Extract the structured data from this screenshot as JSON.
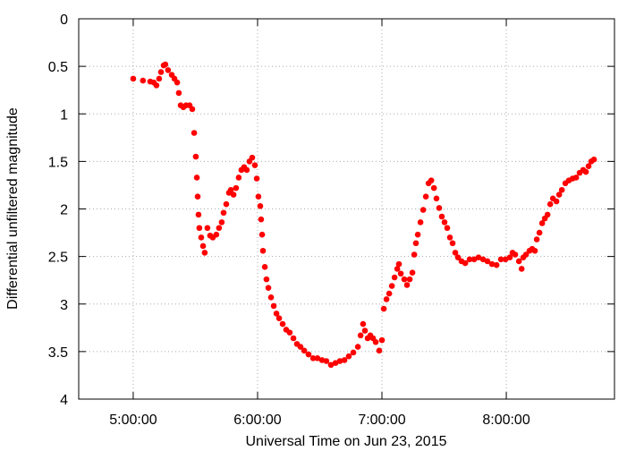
{
  "chart_data": {
    "type": "scatter",
    "x_label": "Universal Time on Jun 23, 2015",
    "y_label": "Differential unfiltered magnitude",
    "xlim": [
      273.7,
      532.2
    ],
    "ylim": [
      4,
      0
    ],
    "xticks": [
      {
        "value": 300,
        "label": "5:00:00"
      },
      {
        "value": 360,
        "label": "6:00:00"
      },
      {
        "value": 420,
        "label": "7:00:00"
      },
      {
        "value": 480,
        "label": "8:00:00"
      }
    ],
    "yticks": [
      0,
      0.5,
      1,
      1.5,
      2,
      2.5,
      3,
      3.5,
      4
    ],
    "grid": true,
    "series": [
      {
        "color": "#ff0000",
        "x": [
          300,
          304.7,
          308.2,
          309.9,
          311.2,
          312.5,
          313.4,
          314.7,
          315.5,
          316.8,
          318.6,
          319.9,
          321.2,
          322.0,
          322.9,
          324.2,
          325.5,
          327.2,
          328.5,
          329.4,
          330.2,
          330.7,
          331.1,
          331.5,
          331.9,
          332.8,
          333.7,
          334.5,
          335.8,
          337.1,
          338.4,
          340.1,
          341.4,
          342.7,
          343.6,
          344.9,
          346.2,
          347.1,
          348.4,
          349.6,
          350.9,
          352.2,
          353.5,
          354.8,
          356.1,
          357.4,
          358.7,
          359.6,
          360.4,
          361.3,
          361.7,
          362.2,
          362.6,
          363.5,
          364.3,
          365.2,
          366.5,
          367.8,
          369.1,
          370.4,
          372.1,
          373.8,
          375.5,
          377.3,
          379.0,
          380.7,
          382.5,
          384.6,
          386.8,
          388.9,
          391.1,
          393.2,
          395.4,
          397.6,
          399.7,
          401.9,
          404.0,
          406.2,
          408.4,
          409.7,
          410.9,
          411.8,
          413.1,
          414.4,
          415.7,
          417.0,
          418.7,
          420.0,
          420.9,
          422.2,
          423.5,
          424.8,
          426.1,
          427.4,
          428.2,
          429.1,
          430.8,
          432.1,
          433.4,
          434.7,
          435.6,
          436.4,
          437.3,
          438.6,
          439.9,
          441.2,
          442.5,
          443.8,
          445.1,
          446.3,
          447.6,
          448.9,
          450.2,
          451.5,
          452.8,
          454.1,
          455.4,
          456.7,
          458.4,
          460.2,
          462.3,
          464.5,
          466.6,
          468.8,
          470.9,
          473.1,
          475.3,
          477.4,
          479.6,
          481.7,
          483.0,
          484.3,
          486.1,
          487.4,
          488.2,
          489.5,
          491.2,
          492.5,
          493.8,
          494.7,
          496.0,
          497.3,
          498.6,
          499.9,
          501.2,
          502.5,
          504.2,
          505.5,
          506.8,
          508.5,
          510.2,
          512.0,
          513.7,
          515.4,
          517.1,
          518.4,
          519.7,
          521.0,
          522.3
        ],
        "values": [
          0.63,
          0.65,
          0.66,
          0.67,
          0.7,
          0.63,
          0.56,
          0.49,
          0.48,
          0.54,
          0.59,
          0.63,
          0.67,
          0.78,
          0.91,
          0.93,
          0.91,
          0.91,
          0.95,
          1.2,
          1.45,
          1.67,
          1.87,
          2.06,
          2.2,
          2.3,
          2.39,
          2.46,
          2.2,
          2.28,
          2.3,
          2.27,
          2.2,
          2.14,
          2.04,
          1.95,
          1.83,
          1.8,
          1.85,
          1.78,
          1.67,
          1.59,
          1.56,
          1.59,
          1.5,
          1.46,
          1.54,
          1.68,
          1.87,
          1.97,
          2.11,
          2.27,
          2.44,
          2.61,
          2.74,
          2.83,
          2.93,
          3.02,
          3.1,
          3.15,
          3.21,
          3.27,
          3.3,
          3.36,
          3.42,
          3.45,
          3.49,
          3.53,
          3.57,
          3.57,
          3.59,
          3.6,
          3.64,
          3.62,
          3.6,
          3.59,
          3.55,
          3.51,
          3.45,
          3.33,
          3.21,
          3.28,
          3.36,
          3.33,
          3.36,
          3.4,
          3.49,
          3.38,
          3.05,
          2.95,
          2.89,
          2.81,
          2.72,
          2.63,
          2.58,
          2.68,
          2.74,
          2.8,
          2.74,
          2.67,
          2.48,
          2.36,
          2.27,
          2.14,
          2.01,
          1.87,
          1.73,
          1.7,
          1.78,
          1.89,
          1.99,
          2.08,
          2.14,
          2.2,
          2.3,
          2.36,
          2.46,
          2.51,
          2.55,
          2.57,
          2.53,
          2.53,
          2.51,
          2.53,
          2.55,
          2.58,
          2.59,
          2.53,
          2.53,
          2.51,
          2.46,
          2.48,
          2.55,
          2.63,
          2.51,
          2.48,
          2.44,
          2.42,
          2.44,
          2.32,
          2.25,
          2.15,
          2.1,
          2.06,
          1.95,
          1.89,
          1.92,
          1.85,
          1.8,
          1.73,
          1.7,
          1.68,
          1.67,
          1.62,
          1.59,
          1.61,
          1.55,
          1.5,
          1.48
        ]
      }
    ]
  }
}
